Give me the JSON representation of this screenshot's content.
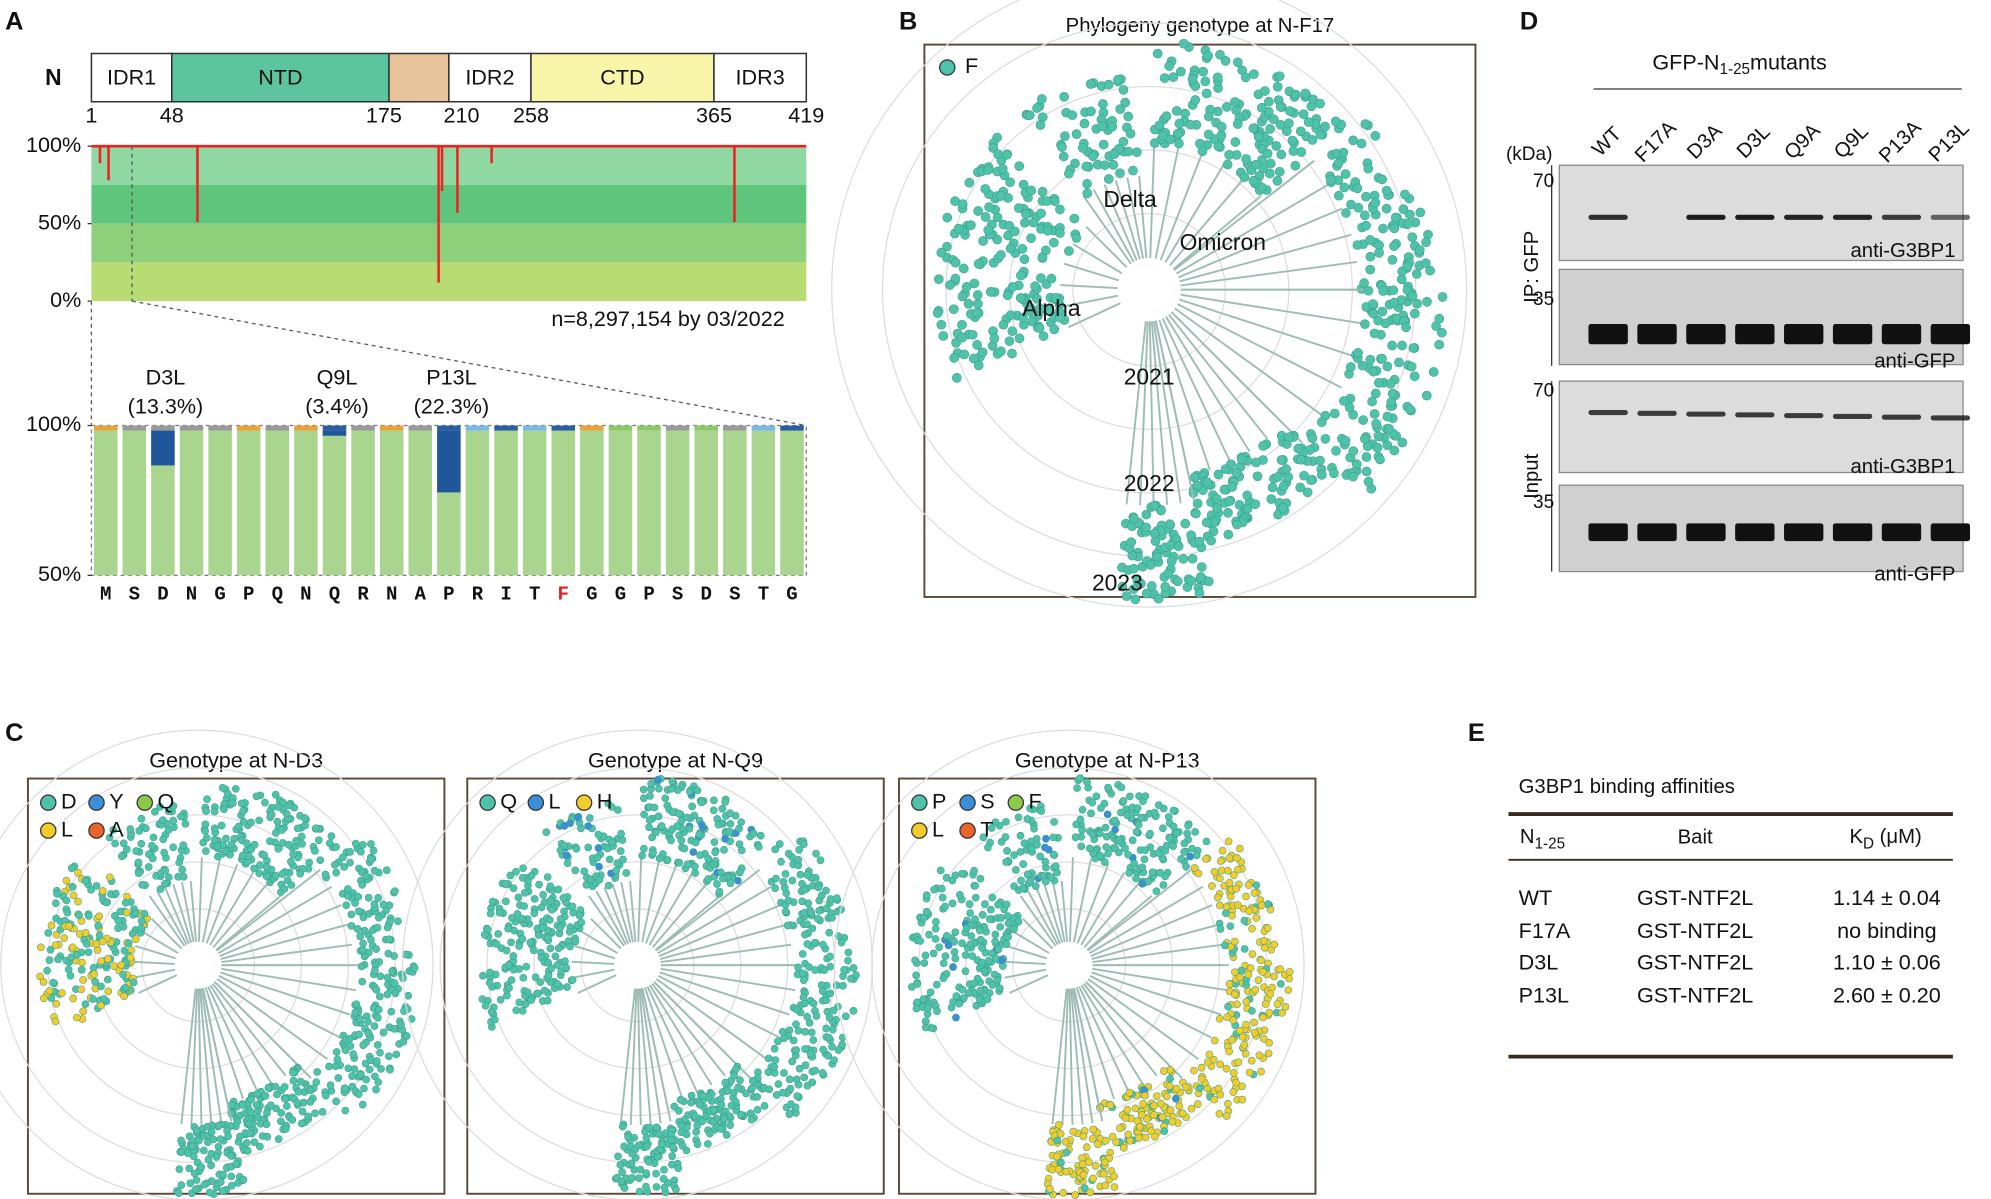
{
  "panels": {
    "a": "A",
    "b": "B",
    "c": "C",
    "d": "D",
    "e": "E"
  },
  "panel_a": {
    "protein": "N",
    "domains": [
      "IDR1",
      "NTD",
      "IDR2",
      "CTD",
      "IDR3"
    ],
    "positions": [
      1,
      48,
      175,
      210,
      258,
      365,
      419
    ],
    "top_plot": {
      "ylim": [
        0,
        100
      ],
      "yticks": [
        {
          "value": 100,
          "label": "100%"
        },
        {
          "value": 50,
          "label": "50%"
        },
        {
          "value": 0,
          "label": "0%"
        }
      ],
      "dips": [
        {
          "position": 6,
          "value": 89
        },
        {
          "position": 11,
          "value": 78
        },
        {
          "position": 63,
          "value": 51
        },
        {
          "position": 204,
          "value": 12
        },
        {
          "position": 206,
          "value": 71
        },
        {
          "position": 215,
          "value": 57
        },
        {
          "position": 235,
          "value": 89
        },
        {
          "position": 377,
          "value": 51
        }
      ],
      "note": "n=8,297,154 by 03/2022"
    },
    "zoom_plot": {
      "ylim": [
        50,
        100
      ],
      "yticks": [
        {
          "value": 100,
          "label": "100%"
        },
        {
          "value": 50,
          "label": "50%"
        }
      ],
      "residues": [
        "M",
        "S",
        "D",
        "N",
        "G",
        "P",
        "Q",
        "N",
        "Q",
        "R",
        "N",
        "A",
        "P",
        "R",
        "I",
        "T",
        "F",
        "G",
        "G",
        "P",
        "S",
        "D",
        "S",
        "T",
        "G"
      ],
      "highlighted": [
        16
      ],
      "mutations": [
        {
          "label": "D3L",
          "frequency_label": "(13.3%)",
          "frequency": 13.3,
          "position": 3
        },
        {
          "label": "Q9L",
          "frequency_label": "(3.4%)",
          "frequency": 3.4,
          "position": 9
        },
        {
          "label": "P13L",
          "frequency_label": "(22.3%)",
          "frequency": 22.3,
          "position": 13
        }
      ]
    }
  },
  "panel_b": {
    "title": "Phylogeny genotype at N-F17",
    "legend": [
      "F"
    ],
    "clade_labels": [
      "Delta",
      "Omicron",
      "Alpha"
    ],
    "year_labels": [
      "2021",
      "2022",
      "2023"
    ]
  },
  "panel_c": [
    {
      "title": "Genotype at N-D3",
      "legend": [
        "D",
        "Y",
        "Q",
        "L",
        "A"
      ]
    },
    {
      "title": "Genotype at N-Q9",
      "legend": [
        "Q",
        "L",
        "H"
      ]
    },
    {
      "title": "Genotype at N-P13",
      "legend": [
        "P",
        "S",
        "F",
        "L",
        "T"
      ]
    }
  ],
  "panel_d": {
    "title_main": "GFP-N",
    "title_sub": "1-25",
    "title_end": "mutants",
    "unit": "(kDa)",
    "lanes": [
      "WT",
      "F17A",
      "D3A",
      "D3L",
      "Q9A",
      "Q9L",
      "P13A",
      "P13L"
    ],
    "markers": [
      "70",
      "35",
      "70",
      "35"
    ],
    "antibodies": [
      "anti-G3BP1",
      "anti-GFP",
      "anti-G3BP1",
      "anti-GFP"
    ],
    "groups": [
      "IP: GFP",
      "Input"
    ]
  },
  "panel_e": {
    "title": "G3BP1 binding affinities",
    "header": {
      "n": "N",
      "n_sub": "1-25",
      "bait": "Bait",
      "kd": "K",
      "kd_sub": "D",
      "kd_unit": " (μM)"
    },
    "rows": [
      [
        "WT",
        "GST-NTF2L",
        "1.14 ± 0.04"
      ],
      [
        "F17A",
        "GST-NTF2L",
        "no binding"
      ],
      [
        "D3L",
        "GST-NTF2L",
        "1.10 ± 0.06"
      ],
      [
        "P13L",
        "GST-NTF2L",
        "2.60 ± 0.20"
      ]
    ]
  }
}
